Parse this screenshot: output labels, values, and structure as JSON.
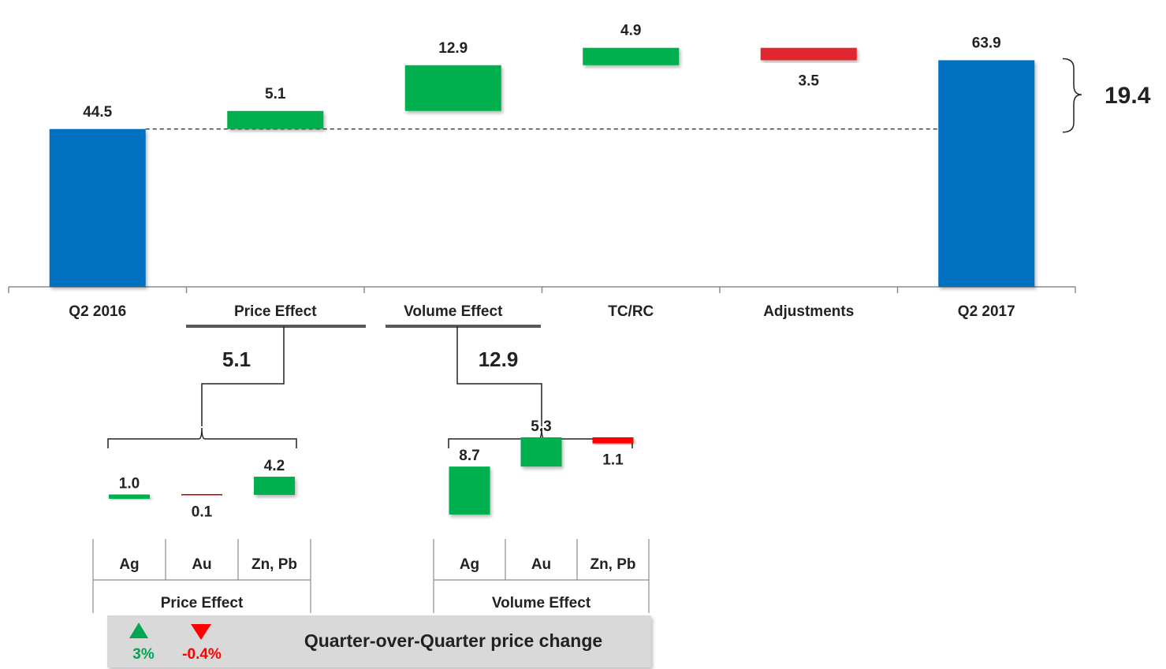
{
  "chart_data": [
    {
      "type": "bar",
      "subtype": "waterfall",
      "categories": [
        "Q2 2016",
        "Price Effect",
        "Volume Effect",
        "TC/RC",
        "Adjustments",
        "Q2 2017"
      ],
      "values": [
        44.5,
        5.1,
        12.9,
        4.9,
        -3.5,
        63.9
      ],
      "labels": [
        "44.5",
        "5.1",
        "12.9",
        "4.9",
        "3.5",
        "63.9"
      ],
      "kinds": [
        "total",
        "increase",
        "increase",
        "increase",
        "decrease",
        "total"
      ],
      "total_change": "19.4",
      "colors": {
        "total": "#0070c0",
        "increase": "#00b050",
        "decrease": "#e0252e"
      }
    },
    {
      "type": "bar",
      "subtype": "waterfall",
      "parent_label": "Price Effect",
      "total": "5.1",
      "categories": [
        "Ag",
        "Au",
        "Zn, Pb"
      ],
      "values": [
        1.0,
        -0.1,
        4.2
      ],
      "labels": [
        "1.0",
        "0.1",
        "4.2"
      ],
      "group_label": "Price Effect"
    },
    {
      "type": "bar",
      "subtype": "waterfall",
      "parent_label": "Volume Effect",
      "total": "12.9",
      "categories": [
        "Ag",
        "Au",
        "Zn, Pb"
      ],
      "values": [
        8.7,
        5.3,
        -1.1
      ],
      "labels": [
        "8.7",
        "5.3",
        "1.1"
      ],
      "group_label": "Volume Effect"
    }
  ],
  "legend": {
    "title": "Quarter-over-Quarter price change",
    "up_value": "3%",
    "down_value": "-0.4%",
    "up_color": "#00a651",
    "down_color": "#ff0000"
  }
}
